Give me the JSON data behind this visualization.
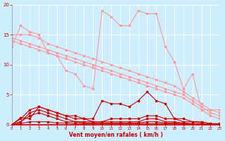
{
  "background_color": "#cceeff",
  "grid_color": "#ffffff",
  "xlabel": "Vent moyen/en rafales ( km/h )",
  "xlabel_color": "#cc0000",
  "tick_color": "#cc0000",
  "ylim": [
    0,
    20
  ],
  "xlim": [
    0,
    23
  ],
  "yticks": [
    0,
    5,
    10,
    15,
    20
  ],
  "xticks": [
    0,
    1,
    2,
    3,
    4,
    5,
    6,
    7,
    8,
    9,
    10,
    11,
    12,
    13,
    14,
    15,
    16,
    17,
    18,
    19,
    20,
    21,
    22,
    23
  ],
  "series_light": [
    [
      13.0,
      16.5,
      15.5,
      15.0,
      12.0,
      11.5,
      9.0,
      8.5,
      6.5,
      6.0,
      19.0,
      18.0,
      16.5,
      16.5,
      19.0,
      18.5,
      18.5,
      13.0,
      10.5,
      6.0,
      8.5,
      2.5,
      2.5,
      2.5
    ],
    [
      15.0,
      15.0,
      15.0,
      14.5,
      13.5,
      13.0,
      12.5,
      12.0,
      11.5,
      11.0,
      10.5,
      10.0,
      9.5,
      9.0,
      8.5,
      8.0,
      7.5,
      7.0,
      6.5,
      5.5,
      4.5,
      3.5,
      2.5,
      2.0
    ],
    [
      14.5,
      14.0,
      13.5,
      13.0,
      12.5,
      12.0,
      11.5,
      11.0,
      10.5,
      10.0,
      9.5,
      9.0,
      8.5,
      8.0,
      7.5,
      7.0,
      6.5,
      6.0,
      5.5,
      5.0,
      4.0,
      3.0,
      2.0,
      1.5
    ],
    [
      14.0,
      13.5,
      13.0,
      12.5,
      12.0,
      11.5,
      11.0,
      10.5,
      10.0,
      9.5,
      9.0,
      8.5,
      8.0,
      7.5,
      7.0,
      6.5,
      6.0,
      5.5,
      5.0,
      4.5,
      3.5,
      2.5,
      1.5,
      1.0
    ]
  ],
  "series_dark": [
    [
      0.0,
      1.2,
      1.0,
      3.0,
      2.5,
      2.0,
      1.5,
      1.5,
      1.0,
      1.0,
      4.0,
      3.5,
      3.5,
      3.0,
      4.0,
      5.5,
      4.0,
      3.5,
      1.0,
      1.0,
      0.5,
      0.5,
      0.2,
      0.2
    ],
    [
      0.0,
      1.0,
      2.5,
      3.0,
      2.5,
      2.0,
      1.5,
      1.0,
      1.0,
      0.5,
      0.5,
      1.0,
      1.0,
      1.0,
      1.0,
      1.5,
      1.5,
      1.0,
      1.0,
      0.5,
      0.5,
      0.3,
      0.1,
      0.1
    ],
    [
      0.0,
      0.5,
      2.0,
      2.5,
      2.0,
      1.5,
      1.0,
      0.5,
      0.5,
      0.5,
      0.5,
      0.5,
      0.5,
      0.5,
      0.5,
      1.0,
      1.0,
      0.5,
      0.5,
      0.3,
      0.2,
      0.1,
      0.0,
      0.0
    ],
    [
      0.0,
      0.5,
      1.5,
      2.0,
      1.5,
      1.0,
      0.5,
      0.5,
      0.3,
      0.3,
      0.3,
      0.3,
      0.3,
      0.3,
      0.3,
      0.5,
      0.5,
      0.3,
      0.3,
      0.2,
      0.1,
      0.1,
      0.0,
      0.0
    ],
    [
      0.0,
      0.2,
      0.5,
      0.5,
      0.5,
      0.3,
      0.3,
      0.2,
      0.2,
      0.2,
      0.2,
      0.2,
      0.2,
      0.2,
      0.2,
      0.2,
      0.2,
      0.2,
      0.2,
      0.1,
      0.0,
      0.0,
      0.0,
      0.0
    ]
  ],
  "light_color": "#ff9999",
  "dark_color": "#cc0000",
  "marker_size": 1.8,
  "line_width": 0.8
}
